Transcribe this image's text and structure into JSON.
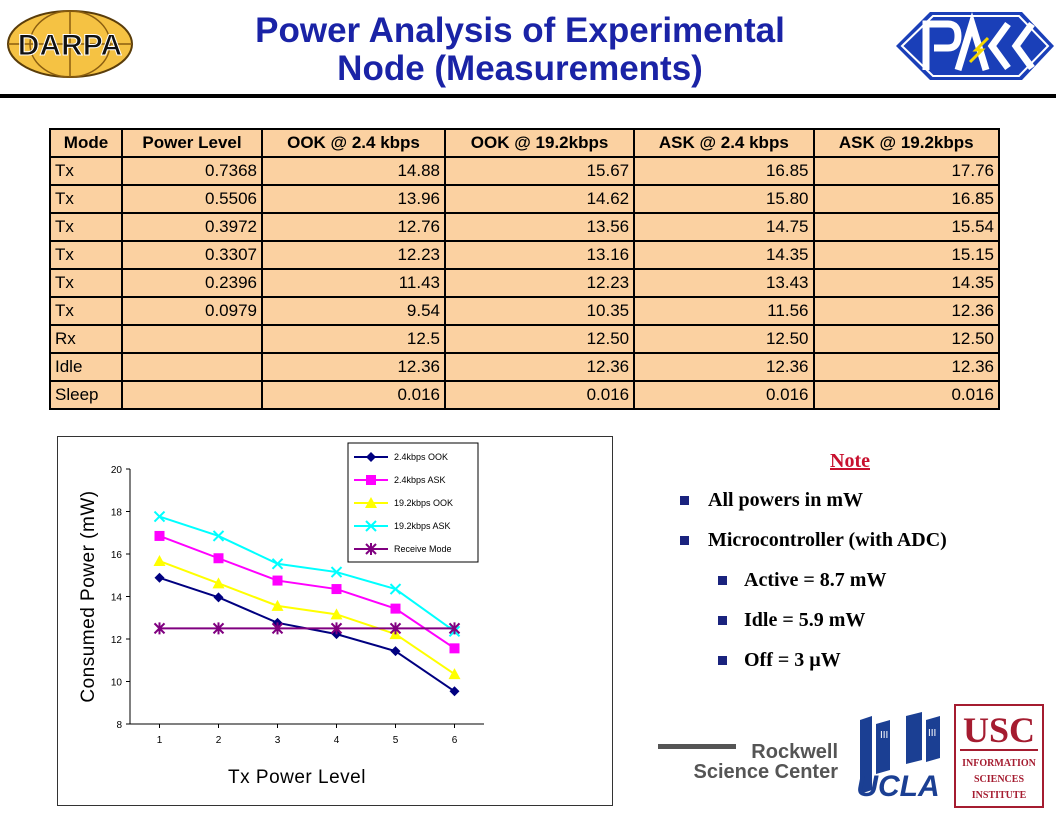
{
  "slide": {
    "title_line1": "Power Analysis of Experimental",
    "title_line2": "Node (Measurements)"
  },
  "logos": {
    "darpa": "DARPA",
    "rockwell_line1": "Rockwell",
    "rockwell_line2": "Science Center",
    "ucla": "UCLA",
    "usc": "USC",
    "isi_line1": "INFORMATION",
    "isi_line2": "SCIENCES",
    "isi_line3": "INSTITUTE"
  },
  "table": {
    "headers": [
      "Mode",
      "Power Level",
      "OOK @ 2.4 kbps",
      "OOK @ 19.2kbps",
      "ASK @ 2.4 kbps",
      "ASK @ 19.2kbps"
    ],
    "rows": [
      [
        "Tx",
        "0.7368",
        "14.88",
        "15.67",
        "16.85",
        "17.76"
      ],
      [
        "Tx",
        "0.5506",
        "13.96",
        "14.62",
        "15.80",
        "16.85"
      ],
      [
        "Tx",
        "0.3972",
        "12.76",
        "13.56",
        "14.75",
        "15.54"
      ],
      [
        "Tx",
        "0.3307",
        "12.23",
        "13.16",
        "14.35",
        "15.15"
      ],
      [
        "Tx",
        "0.2396",
        "11.43",
        "12.23",
        "13.43",
        "14.35"
      ],
      [
        "Tx",
        "0.0979",
        "9.54",
        "10.35",
        "11.56",
        "12.36"
      ],
      [
        "Rx",
        "",
        "12.5",
        "12.50",
        "12.50",
        "12.50"
      ],
      [
        "Idle",
        "",
        "12.36",
        "12.36",
        "12.36",
        "12.36"
      ],
      [
        "Sleep",
        "",
        "0.016",
        "0.016",
        "0.016",
        "0.016"
      ]
    ]
  },
  "note": {
    "title": "Note",
    "items": [
      "All powers in mW",
      "Microcontroller (with ADC)",
      "Active = 8.7 mW",
      "Idle = 5.9 mW",
      "Off = 3 µW"
    ]
  },
  "chart_data": {
    "type": "line",
    "xlabel": "Tx Power Level",
    "ylabel": "Consumed Power (mW)",
    "x": [
      1,
      2,
      3,
      4,
      5,
      6
    ],
    "ylim": [
      8,
      20
    ],
    "yticks": [
      8,
      10,
      12,
      14,
      16,
      18,
      20
    ],
    "legend_position": "top-right",
    "series": [
      {
        "name": "2.4kbps OOK",
        "values": [
          14.88,
          13.96,
          12.76,
          12.23,
          11.43,
          9.54
        ],
        "color": "#000080",
        "marker": "diamond"
      },
      {
        "name": "2.4kbps ASK",
        "values": [
          16.85,
          15.8,
          14.75,
          14.35,
          13.43,
          11.56
        ],
        "color": "#ff00ff",
        "marker": "square"
      },
      {
        "name": "19.2kbps OOK",
        "values": [
          15.67,
          14.62,
          13.56,
          13.16,
          12.23,
          10.35
        ],
        "color": "#ffff00",
        "marker": "triangle"
      },
      {
        "name": "19.2kbps ASK",
        "values": [
          17.76,
          16.85,
          15.54,
          15.15,
          14.35,
          12.36
        ],
        "color": "#00ffff",
        "marker": "x"
      },
      {
        "name": "Receive Mode",
        "values": [
          12.5,
          12.5,
          12.5,
          12.5,
          12.5,
          12.5
        ],
        "color": "#800080",
        "marker": "star"
      }
    ]
  }
}
